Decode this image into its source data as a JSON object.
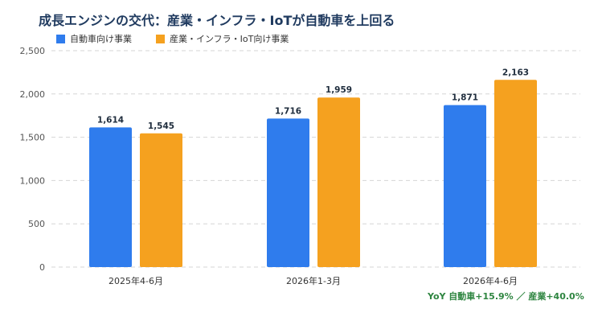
{
  "title": "成長エンジンの交代：産業・インフラ・IoTが自動車を上回る",
  "colors": {
    "auto": "#2f7ced",
    "industry": "#f5a11f",
    "grid": "#d6d6d6",
    "note": "#2e8540"
  },
  "chart_data": {
    "type": "bar",
    "categories": [
      "2025年4-6月",
      "2026年1-3月",
      "2026年4-6月"
    ],
    "series": [
      {
        "name": "自動車向け事業",
        "values": [
          1614,
          1716,
          1871
        ],
        "labels": [
          "1,614",
          "1,716",
          "1,871"
        ]
      },
      {
        "name": "産業・インフラ・IoT向け事業",
        "values": [
          1545,
          1959,
          2163
        ],
        "labels": [
          "1,545",
          "1,959",
          "2,163"
        ]
      }
    ],
    "ylim": [
      0,
      2500
    ],
    "yticks": [
      0,
      500,
      1000,
      1500,
      2000,
      2500
    ],
    "ytick_labels": [
      "0",
      "500",
      "1,000",
      "1,500",
      "2,000",
      "2,500"
    ],
    "grid": true,
    "legend": "top-left",
    "annotation": "YoY 自動車+15.9% ／ 産業+40.0%"
  }
}
